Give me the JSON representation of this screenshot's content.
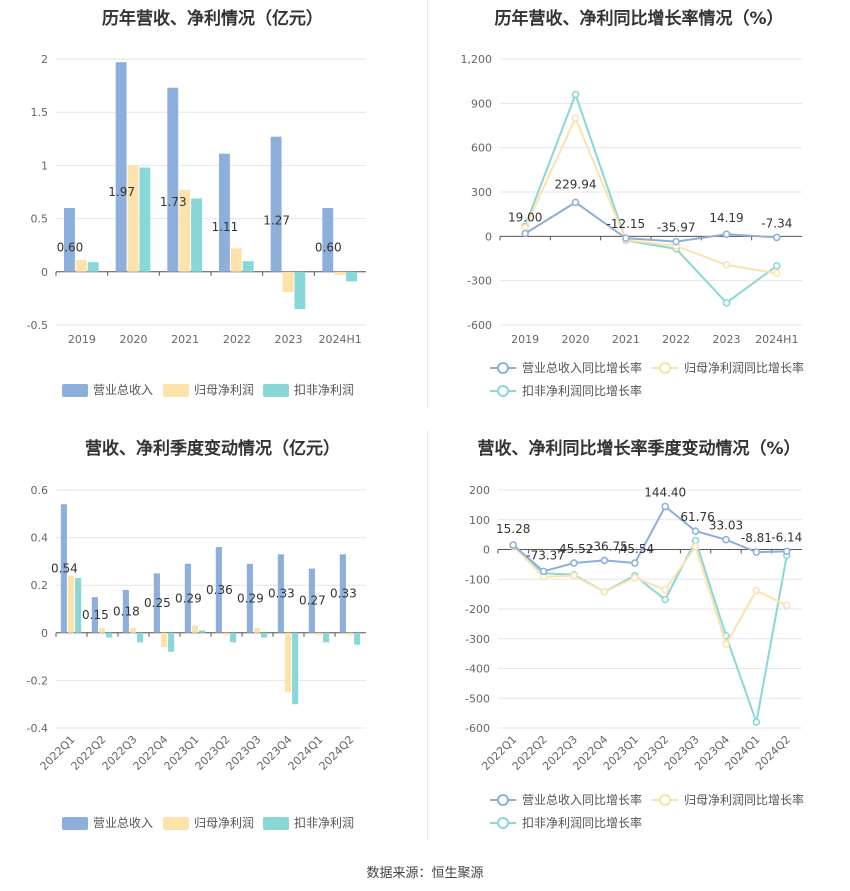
{
  "source": "数据来源：恒生聚源",
  "colors": {
    "revenue": "#8eaedb",
    "netprofit": "#fde2ac",
    "deducted": "#8ad7d7",
    "grid": "#e6e6e6",
    "axis": "#666666"
  },
  "chart_data": [
    {
      "id": "annual-values",
      "type": "bar",
      "title": "历年营收、净利情况（亿元）",
      "categories": [
        "2019",
        "2020",
        "2021",
        "2022",
        "2023",
        "2024H1"
      ],
      "series": [
        {
          "name": "营业总收入",
          "values": [
            0.6,
            1.97,
            1.73,
            1.11,
            1.27,
            0.6
          ],
          "labels": [
            "0.60",
            "1.97",
            "1.73",
            "1.11",
            "1.27",
            "0.60"
          ]
        },
        {
          "name": "归母净利润",
          "values": [
            0.11,
            1.0,
            0.77,
            0.22,
            -0.19,
            -0.03
          ]
        },
        {
          "name": "扣非净利润",
          "values": [
            0.09,
            0.98,
            0.69,
            0.1,
            -0.35,
            -0.09
          ]
        }
      ],
      "ylim": [
        -0.5,
        2
      ],
      "yticks": [
        "2",
        "1.5",
        "1",
        "0.5",
        "0",
        "-0.5"
      ],
      "grid": true,
      "legend": "bottom"
    },
    {
      "id": "annual-growth",
      "type": "line",
      "title": "历年营收、净利同比增长率情况（%）",
      "categories": [
        "2019",
        "2020",
        "2021",
        "2022",
        "2023",
        "2024H1"
      ],
      "series": [
        {
          "name": "营业总收入同比增长率",
          "values": [
            19.0,
            229.94,
            -12.15,
            -35.97,
            14.19,
            -7.34
          ],
          "labels": [
            "19.00",
            "229.94",
            "-12.15",
            "-35.97",
            "14.19",
            "-7.34"
          ]
        },
        {
          "name": "归母净利润同比增长率",
          "values": [
            60,
            800,
            -25,
            -65,
            -193,
            -250
          ]
        },
        {
          "name": "扣非净利润同比增长率",
          "values": [
            70,
            960,
            -28,
            -85,
            -450,
            -200
          ]
        }
      ],
      "ylim": [
        -600,
        1200
      ],
      "yticks": [
        "1,200",
        "900",
        "600",
        "300",
        "0",
        "-300",
        "-600"
      ],
      "grid": true,
      "legend": "bottom"
    },
    {
      "id": "quarterly-values",
      "type": "bar",
      "title": "营收、净利季度变动情况（亿元）",
      "categories": [
        "2022Q1",
        "2022Q2",
        "2022Q3",
        "2022Q4",
        "2023Q1",
        "2023Q2",
        "2023Q3",
        "2023Q4",
        "2024Q1",
        "2024Q2"
      ],
      "series": [
        {
          "name": "营业总收入",
          "values": [
            0.54,
            0.15,
            0.18,
            0.25,
            0.29,
            0.36,
            0.29,
            0.33,
            0.27,
            0.33
          ],
          "labels": [
            "0.54",
            "0.15",
            "0.18",
            "0.25",
            "0.29",
            "0.36",
            "0.29",
            "0.33",
            "0.27",
            "0.33"
          ]
        },
        {
          "name": "归母净利润",
          "values": [
            0.24,
            0.02,
            0.02,
            -0.06,
            0.03,
            -0.01,
            0.02,
            -0.25,
            -0.01,
            -0.01
          ]
        },
        {
          "name": "扣非净利润",
          "values": [
            0.23,
            -0.02,
            -0.04,
            -0.08,
            0.01,
            -0.04,
            -0.02,
            -0.3,
            -0.04,
            -0.05
          ]
        }
      ],
      "ylim": [
        -0.4,
        0.6
      ],
      "yticks": [
        "0.6",
        "0.4",
        "0.2",
        "0",
        "-0.2",
        "-0.4"
      ],
      "grid": true,
      "legend": "bottom"
    },
    {
      "id": "quarterly-growth",
      "type": "line",
      "title": "营收、净利同比增长率季度变动情况（%）",
      "categories": [
        "2022Q1",
        "2022Q2",
        "2022Q3",
        "2022Q4",
        "2023Q1",
        "2023Q2",
        "2023Q3",
        "2023Q4",
        "2024Q1",
        "2024Q2"
      ],
      "series": [
        {
          "name": "营业总收入同比增长率",
          "values": [
            15.28,
            -73.37,
            -45.52,
            -36.75,
            -45.54,
            144.4,
            61.76,
            33.03,
            -8.81,
            -6.14
          ],
          "labels": [
            "15.28",
            "-73.37",
            "-45.52",
            "-36.75",
            "-45.54",
            "144.40",
            "61.76",
            "33.03",
            "-8.81",
            "-6.14"
          ]
        },
        {
          "name": "归母净利润同比增长率",
          "values": [
            12,
            -92,
            -88,
            -142,
            -95,
            -135,
            10,
            -318,
            -138,
            -188
          ]
        },
        {
          "name": "扣非净利润同比增长率",
          "values": [
            10,
            -80,
            -85,
            -142,
            -88,
            -168,
            30,
            -290,
            -580,
            -20
          ]
        }
      ],
      "ylim": [
        -600,
        200
      ],
      "yticks": [
        "200",
        "100",
        "0",
        "-100",
        "-200",
        "-300",
        "-400",
        "-500",
        "-600"
      ],
      "grid": true,
      "legend": "bottom"
    }
  ]
}
